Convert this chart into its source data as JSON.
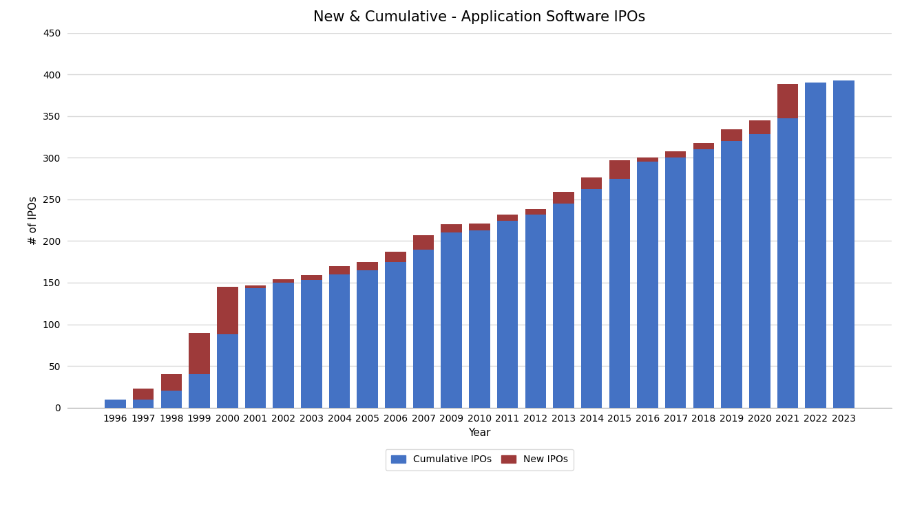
{
  "title": "New & Cumulative - Application Software IPOs",
  "xlabel": "Year",
  "ylabel": "# of IPOs",
  "years": [
    "1996",
    "1997",
    "1998",
    "1999",
    "2000",
    "2001",
    "2002",
    "2003",
    "2004",
    "2005",
    "2006",
    "2007",
    "2009",
    "2010",
    "2011",
    "2012",
    "2013",
    "2014",
    "2015",
    "2016",
    "2017",
    "2018",
    "2019",
    "2020",
    "2021",
    "2022",
    "2023"
  ],
  "cumulative": [
    10,
    10,
    20,
    40,
    88,
    143,
    150,
    153,
    160,
    165,
    175,
    190,
    210,
    213,
    224,
    232,
    245,
    262,
    275,
    295,
    300,
    310,
    320,
    328,
    347,
    390,
    393
  ],
  "new_ipos": [
    0,
    13,
    20,
    50,
    57,
    4,
    4,
    6,
    10,
    10,
    12,
    17,
    10,
    8,
    8,
    6,
    14,
    14,
    22,
    5,
    8,
    8,
    14,
    17,
    42,
    0,
    0
  ],
  "cumulative_color": "#4472C4",
  "new_color": "#9E3A3A",
  "background_color": "#FFFFFF",
  "grid_color": "#D9D9D9",
  "ylim": [
    0,
    450
  ],
  "yticks": [
    0,
    50,
    100,
    150,
    200,
    250,
    300,
    350,
    400,
    450
  ],
  "title_fontsize": 15,
  "axis_fontsize": 11,
  "tick_fontsize": 10,
  "legend_labels": [
    "Cumulative IPOs",
    "New IPOs"
  ],
  "bar_width": 0.75
}
